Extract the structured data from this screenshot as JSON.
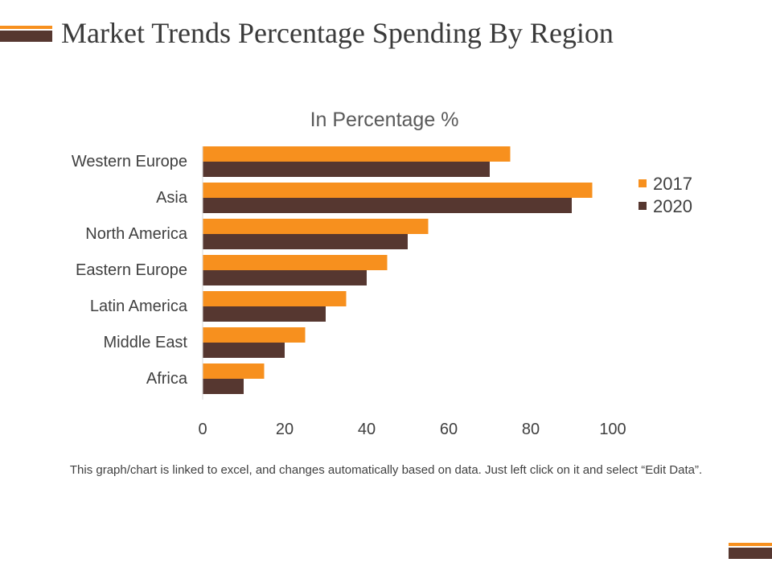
{
  "slide": {
    "title": "Market Trends Percentage Spending By Region",
    "footnote": "This graph/chart is linked to excel, and changes automatically based on data. Just left click on it and select “Edit Data”.",
    "accent_color": "#f7901e",
    "dark_color": "#563730"
  },
  "chart_data": {
    "type": "bar",
    "orientation": "horizontal",
    "title": "In Percentage %",
    "categories": [
      "Western Europe",
      "Asia",
      "North America",
      "Eastern Europe",
      "Latin America",
      "Middle East",
      "Africa"
    ],
    "series": [
      {
        "name": "2017",
        "color": "#f7901e",
        "values": [
          75,
          95,
          55,
          45,
          35,
          25,
          15
        ]
      },
      {
        "name": "2020",
        "color": "#563730",
        "values": [
          70,
          90,
          50,
          40,
          30,
          20,
          10
        ]
      }
    ],
    "xlim": [
      0,
      100
    ],
    "xticks": [
      0,
      20,
      40,
      60,
      80,
      100
    ],
    "grid": false,
    "legend": "right"
  }
}
